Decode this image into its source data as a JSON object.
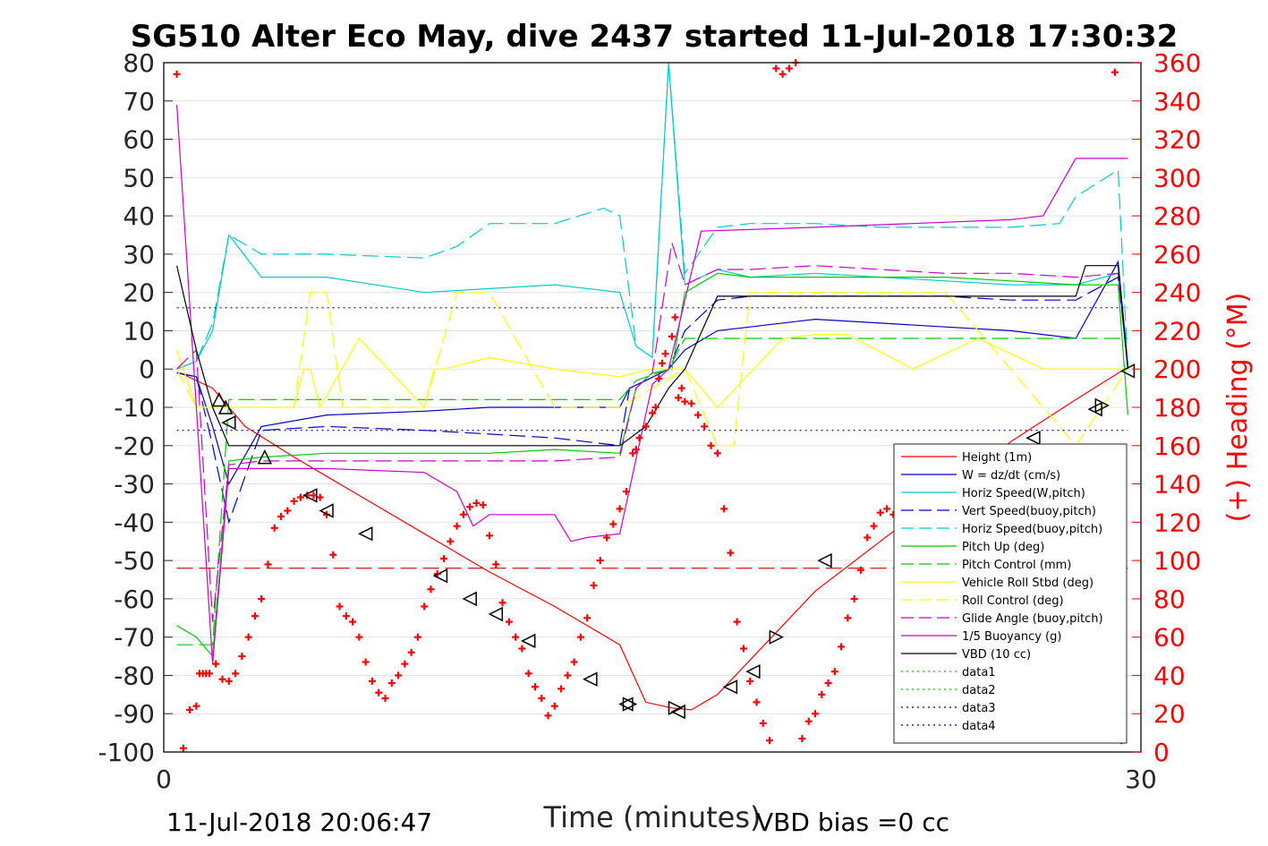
{
  "chart_data": {
    "type": "line",
    "title": "SG510 Alter Eco May, dive 2437 started 11-Jul-2018 17:30:32",
    "xlabel": "Time (minutes)",
    "ylabel_right": "(+) Heading (°M)",
    "xlim": [
      0,
      30
    ],
    "ylim_left": [
      -100,
      80
    ],
    "ylim_right": [
      0,
      360
    ],
    "x_ticks": [
      "0",
      "30"
    ],
    "y_ticks_left": [
      "80",
      "70",
      "60",
      "50",
      "40",
      "30",
      "20",
      "10",
      "0",
      "-10",
      "-20",
      "-30",
      "-40",
      "-50",
      "-60",
      "-70",
      "-80",
      "-90",
      "-100"
    ],
    "y_ticks_right": [
      "360",
      "340",
      "320",
      "300",
      "280",
      "260",
      "240",
      "220",
      "200",
      "180",
      "160",
      "140",
      "120",
      "100",
      "80",
      "60",
      "40",
      "20",
      "0"
    ],
    "grid": true,
    "legend_position": "bottom-right",
    "footer_left": "11-Jul-2018 20:06:47",
    "footer_right": "VBD bias =0 cc",
    "series": [
      {
        "name": "Height (1m)",
        "color": "#ff0000",
        "style": "solid",
        "x": [
          0.5,
          1.5,
          2.5,
          4.0,
          6.0,
          8.0,
          10.0,
          12.0,
          14.0,
          14.8,
          15.6,
          16.2,
          17.0,
          18.0,
          19.0,
          20.0,
          22.0,
          24.0,
          26.0,
          28.0,
          29.5
        ],
        "values": [
          -1,
          -5,
          -15,
          -23,
          -33,
          -43,
          -53,
          -62,
          -72,
          -87,
          -88.5,
          -89,
          -85,
          -76,
          -67,
          -58,
          -45,
          -32,
          -19,
          -8,
          0
        ]
      },
      {
        "name": "W = dz/dt (cm/s)",
        "color": "#0000cc",
        "style": "solid",
        "x": [
          0.4,
          1.0,
          1.5,
          2.0,
          3.0,
          5.0,
          8.0,
          10.0,
          12.0,
          14.0,
          14.3,
          14.8,
          15.5,
          16.0,
          17.0,
          18.0,
          20.0,
          22.0,
          24.0,
          26.0,
          28.0,
          29.3,
          29.6
        ],
        "values": [
          -1,
          -2,
          -15,
          -30,
          -15,
          -12,
          -11,
          -10,
          -10,
          -10,
          -5,
          -3,
          0,
          5,
          10,
          11,
          13,
          12,
          11,
          10,
          8,
          28,
          1
        ]
      },
      {
        "name": "Horiz Speed(W,pitch)",
        "color": "#00cccc",
        "style": "solid",
        "x": [
          0.4,
          1.0,
          1.5,
          2.0,
          3.0,
          5.0,
          8.0,
          10.0,
          12.0,
          14.0,
          14.5,
          15.0,
          15.5,
          16.0,
          17.0,
          18.0,
          20.0,
          22.0,
          24.0,
          26.0,
          28.0,
          29.3,
          29.6
        ],
        "values": [
          0,
          2,
          10,
          35,
          24,
          24,
          20,
          21,
          22,
          20,
          6,
          3,
          80,
          22,
          26,
          24,
          25,
          24,
          23,
          22,
          22,
          25,
          0
        ]
      },
      {
        "name": "Vert Speed(buoy,pitch)",
        "color": "#0000cc",
        "style": "dashed",
        "x": [
          0.4,
          1.0,
          1.5,
          2.0,
          3.0,
          5.0,
          8.0,
          10.0,
          12.0,
          14.0,
          14.3,
          14.8,
          15.5,
          16.0,
          17.0,
          18.0,
          20.0,
          22.0,
          24.0,
          26.0,
          28.0,
          29.3,
          29.6
        ],
        "values": [
          -1,
          -2,
          -20,
          -40,
          -16,
          -15,
          -16,
          -17,
          -18,
          -20,
          -5,
          -3,
          0,
          10,
          18,
          19,
          19,
          19,
          19,
          18,
          18,
          24,
          1
        ]
      },
      {
        "name": "Horiz Speed(buoy,pitch)",
        "color": "#00cccc",
        "style": "dashed",
        "x": [
          0.4,
          1.0,
          1.5,
          2.0,
          3.0,
          5.0,
          8.0,
          9.0,
          10.0,
          12.0,
          13.5,
          14.0,
          14.5,
          15.0,
          15.5,
          16.0,
          17.0,
          18.0,
          20.0,
          22.0,
          24.0,
          26.0,
          27.5,
          28.0,
          29.3,
          29.6
        ],
        "values": [
          0,
          2,
          12,
          35,
          30,
          30,
          29,
          32,
          38,
          38,
          42,
          40,
          6,
          3,
          80,
          25,
          37,
          38,
          38,
          37,
          37,
          37,
          38,
          45,
          52,
          0
        ]
      },
      {
        "name": "Pitch Up (deg)",
        "color": "#00cc00",
        "style": "solid",
        "x": [
          0.4,
          1.0,
          1.5,
          2.0,
          3.0,
          5.0,
          8.0,
          10.0,
          12.0,
          14.0,
          14.5,
          15.0,
          15.6,
          16.0,
          17.0,
          18.0,
          20.0,
          22.0,
          24.0,
          26.0,
          28.0,
          29.3,
          29.6
        ],
        "values": [
          -67,
          -70,
          -75,
          -24,
          -23,
          -22,
          -22,
          -22,
          -21,
          -22,
          -5,
          -1,
          0,
          20,
          25,
          24,
          24,
          24,
          24,
          23,
          22,
          22,
          -12
        ]
      },
      {
        "name": "Pitch Control (mm)",
        "color": "#00cc00",
        "style": "dashed",
        "x": [
          0.4,
          1.0,
          1.5,
          2.0,
          3.0,
          14.0,
          14.5,
          15.5,
          16.0,
          17.0,
          29.3,
          29.6
        ],
        "values": [
          -72,
          -72,
          -72,
          -8,
          -8,
          -8,
          -3,
          0,
          8,
          8,
          8,
          8
        ]
      },
      {
        "name": "Vehicle Roll Stbd (deg)",
        "color": "#ffff00",
        "style": "solid",
        "x": [
          0.4,
          1.0,
          2.0,
          4.0,
          4.3,
          4.5,
          4.8,
          6.0,
          8.0,
          8.3,
          8.6,
          10.0,
          12.0,
          14.0,
          15.0,
          16.0,
          17.0,
          19.0,
          20.0,
          21.0,
          23.0,
          25.0,
          27.0,
          29.0,
          29.6
        ],
        "values": [
          5,
          -10,
          -10,
          -10,
          0,
          0,
          -10,
          8,
          -10,
          0,
          0,
          3,
          0,
          -2,
          0,
          0,
          -10,
          8,
          9,
          9,
          0,
          8,
          0,
          0,
          0
        ]
      },
      {
        "name": "Roll Control (deg)",
        "color": "#ffff00",
        "style": "dashed",
        "x": [
          0.4,
          1.0,
          2.0,
          4.0,
          4.5,
          5.0,
          5.5,
          8.0,
          9.0,
          10.0,
          12.0,
          14.0,
          16.0,
          17.0,
          17.5,
          18.0,
          20.0,
          24.0,
          28.0,
          29.6
        ],
        "values": [
          0,
          -10,
          -10,
          -10,
          20,
          20,
          -10,
          -10,
          20,
          20,
          -10,
          -10,
          0,
          -20,
          -20,
          20,
          20,
          20,
          -20,
          0
        ]
      },
      {
        "name": "Glide Angle (buoy,pitch)",
        "color": "#cc00cc",
        "style": "dashed",
        "x": [
          0.4,
          1.0,
          1.5,
          2.0,
          3.0,
          5.0,
          8.0,
          10.0,
          12.0,
          14.0,
          14.5,
          15.0,
          15.6,
          16.0,
          17.0,
          18.0,
          20.0,
          22.0,
          24.0,
          26.0,
          28.0,
          29.3,
          29.6
        ],
        "values": [
          0,
          5,
          -66,
          -25,
          -24,
          -24,
          -24,
          -24,
          -24,
          -23,
          -5,
          -1,
          33,
          22,
          26,
          26,
          27,
          26,
          25,
          25,
          24,
          25,
          0
        ]
      },
      {
        "name": "1/5 Buoyancy (g)",
        "color": "#cc00cc",
        "style": "solid",
        "x": [
          0.4,
          1.0,
          1.5,
          2.0,
          3.0,
          5.0,
          8.0,
          9.0,
          9.5,
          10.0,
          12.0,
          12.5,
          13.0,
          14.0,
          15.0,
          15.5,
          16.5,
          20.0,
          26.0,
          27.0,
          28.0,
          29.3,
          29.6
        ],
        "values": [
          69,
          -10,
          -77,
          -26,
          -26,
          -26,
          -27,
          -32,
          -41,
          -38,
          -38,
          -45,
          -44,
          -43,
          -4,
          0,
          36,
          37,
          39,
          40,
          55,
          55,
          55
        ]
      },
      {
        "name": "VBD (10 cc)",
        "color": "#000000",
        "style": "solid",
        "x": [
          0.4,
          1.0,
          1.5,
          2.0,
          3.0,
          8.0,
          14.0,
          14.8,
          15.5,
          16.0,
          17.0,
          18.0,
          20.0,
          24.0,
          28.0,
          28.3,
          29.3,
          29.6
        ],
        "values": [
          27,
          5,
          -10,
          -20,
          -20,
          -20,
          -20,
          -15,
          -5,
          0,
          19,
          19,
          19,
          19,
          19,
          27,
          27,
          0
        ]
      },
      {
        "name": "data1",
        "color": "#00cc00",
        "style": "dotted",
        "x": [],
        "values": []
      },
      {
        "name": "data2",
        "color": "#00cc00",
        "style": "dotted",
        "x": [],
        "values": []
      },
      {
        "name": "data3",
        "color": "#000080",
        "style": "dotted",
        "x": [
          0.4,
          29.6
        ],
        "values": [
          -16,
          -16
        ]
      },
      {
        "name": "data4",
        "color": "#0000cc",
        "style": "dotted",
        "x": [
          0.4,
          29.6
        ],
        "values": [
          16,
          16
        ]
      },
      {
        "name": "",
        "color": "#cc0000",
        "style": "dashed",
        "x": [
          0.4,
          29.6
        ],
        "values": [
          -52,
          -52
        ]
      }
    ],
    "heading_points": [
      [
        0.4,
        354
      ],
      [
        0.6,
        2
      ],
      [
        0.8,
        22
      ],
      [
        1.0,
        24
      ],
      [
        1.1,
        41
      ],
      [
        1.2,
        41
      ],
      [
        1.3,
        41
      ],
      [
        1.4,
        41
      ],
      [
        1.6,
        46
      ],
      [
        1.8,
        38
      ],
      [
        2.0,
        37
      ],
      [
        2.2,
        41
      ],
      [
        2.4,
        50
      ],
      [
        2.6,
        60
      ],
      [
        2.8,
        71
      ],
      [
        3.0,
        80
      ],
      [
        3.2,
        98
      ],
      [
        3.4,
        117
      ],
      [
        3.6,
        123
      ],
      [
        3.8,
        126
      ],
      [
        4.0,
        131
      ],
      [
        4.2,
        133
      ],
      [
        4.4,
        134
      ],
      [
        4.6,
        134
      ],
      [
        4.8,
        133
      ],
      [
        5.0,
        124
      ],
      [
        5.2,
        103
      ],
      [
        5.4,
        76
      ],
      [
        5.6,
        71
      ],
      [
        5.8,
        68
      ],
      [
        6.0,
        60
      ],
      [
        6.2,
        47
      ],
      [
        6.4,
        37
      ],
      [
        6.6,
        31
      ],
      [
        6.8,
        28
      ],
      [
        7.0,
        36
      ],
      [
        7.2,
        40
      ],
      [
        7.4,
        46
      ],
      [
        7.6,
        52
      ],
      [
        7.8,
        60
      ],
      [
        8.0,
        76
      ],
      [
        8.2,
        85
      ],
      [
        8.4,
        93
      ],
      [
        8.6,
        101
      ],
      [
        8.8,
        110
      ],
      [
        9.0,
        118
      ],
      [
        9.2,
        124
      ],
      [
        9.4,
        128
      ],
      [
        9.6,
        130
      ],
      [
        9.8,
        129
      ],
      [
        10.0,
        113
      ],
      [
        10.2,
        98
      ],
      [
        10.4,
        78
      ],
      [
        10.6,
        68
      ],
      [
        10.8,
        60
      ],
      [
        11.0,
        54
      ],
      [
        11.2,
        41
      ],
      [
        11.4,
        34
      ],
      [
        11.6,
        28
      ],
      [
        11.8,
        19
      ],
      [
        12.0,
        24
      ],
      [
        12.2,
        33
      ],
      [
        12.4,
        40
      ],
      [
        12.6,
        47
      ],
      [
        12.8,
        60
      ],
      [
        13.0,
        70
      ],
      [
        13.2,
        87
      ],
      [
        13.4,
        100
      ],
      [
        13.6,
        112
      ],
      [
        13.8,
        119
      ],
      [
        14.0,
        127
      ],
      [
        14.2,
        136
      ],
      [
        14.4,
        156
      ],
      [
        14.5,
        158
      ],
      [
        14.6,
        164
      ],
      [
        14.8,
        170
      ],
      [
        15.0,
        177
      ],
      [
        15.1,
        180
      ],
      [
        15.2,
        195
      ],
      [
        15.3,
        203
      ],
      [
        15.4,
        208
      ],
      [
        15.6,
        217
      ],
      [
        15.7,
        227
      ],
      [
        15.8,
        185
      ],
      [
        15.9,
        190
      ],
      [
        16.0,
        183
      ],
      [
        16.2,
        182
      ],
      [
        16.4,
        176
      ],
      [
        16.6,
        170
      ],
      [
        16.8,
        160
      ],
      [
        17.0,
        156
      ],
      [
        17.2,
        127
      ],
      [
        17.4,
        104
      ],
      [
        17.6,
        68
      ],
      [
        17.8,
        54
      ],
      [
        18.0,
        37
      ],
      [
        18.2,
        26
      ],
      [
        18.4,
        15
      ],
      [
        18.6,
        6
      ],
      [
        18.8,
        357
      ],
      [
        19.0,
        354
      ],
      [
        19.2,
        357
      ],
      [
        19.4,
        360
      ],
      [
        19.6,
        7
      ],
      [
        19.8,
        16
      ],
      [
        20.0,
        20
      ],
      [
        20.2,
        30
      ],
      [
        20.4,
        36
      ],
      [
        20.6,
        42
      ],
      [
        20.8,
        55
      ],
      [
        21.0,
        70
      ],
      [
        21.2,
        80
      ],
      [
        21.4,
        95
      ],
      [
        21.6,
        112
      ],
      [
        21.8,
        118
      ],
      [
        22.0,
        125
      ],
      [
        22.2,
        127
      ],
      [
        22.4,
        124
      ],
      [
        22.6,
        116
      ],
      [
        22.8,
        105
      ],
      [
        23.0,
        94
      ],
      [
        29.2,
        355
      ],
      [
        29.4,
        6
      ]
    ],
    "markers_down": [
      [
        1.7,
        -8
      ],
      [
        1.9,
        -10
      ],
      [
        3.1,
        -23
      ]
    ],
    "markers_left": [
      [
        2.0,
        -14
      ],
      [
        4.5,
        -33
      ],
      [
        5.0,
        -37
      ],
      [
        6.2,
        -43
      ],
      [
        8.5,
        -54
      ],
      [
        9.4,
        -60
      ],
      [
        10.2,
        -64
      ],
      [
        11.2,
        -71
      ],
      [
        13.1,
        -81
      ],
      [
        14.2,
        -87.5
      ],
      [
        15.8,
        -89.5
      ],
      [
        17.4,
        -83
      ],
      [
        18.1,
        -79
      ],
      [
        20.3,
        -50
      ],
      [
        26.7,
        -18
      ],
      [
        28.6,
        -10.5
      ],
      [
        29.6,
        -0.5
      ]
    ],
    "markers_right": [
      [
        14.3,
        -87.5
      ],
      [
        15.7,
        -88.5
      ],
      [
        18.8,
        -70
      ],
      [
        28.8,
        -9.5
      ]
    ]
  }
}
